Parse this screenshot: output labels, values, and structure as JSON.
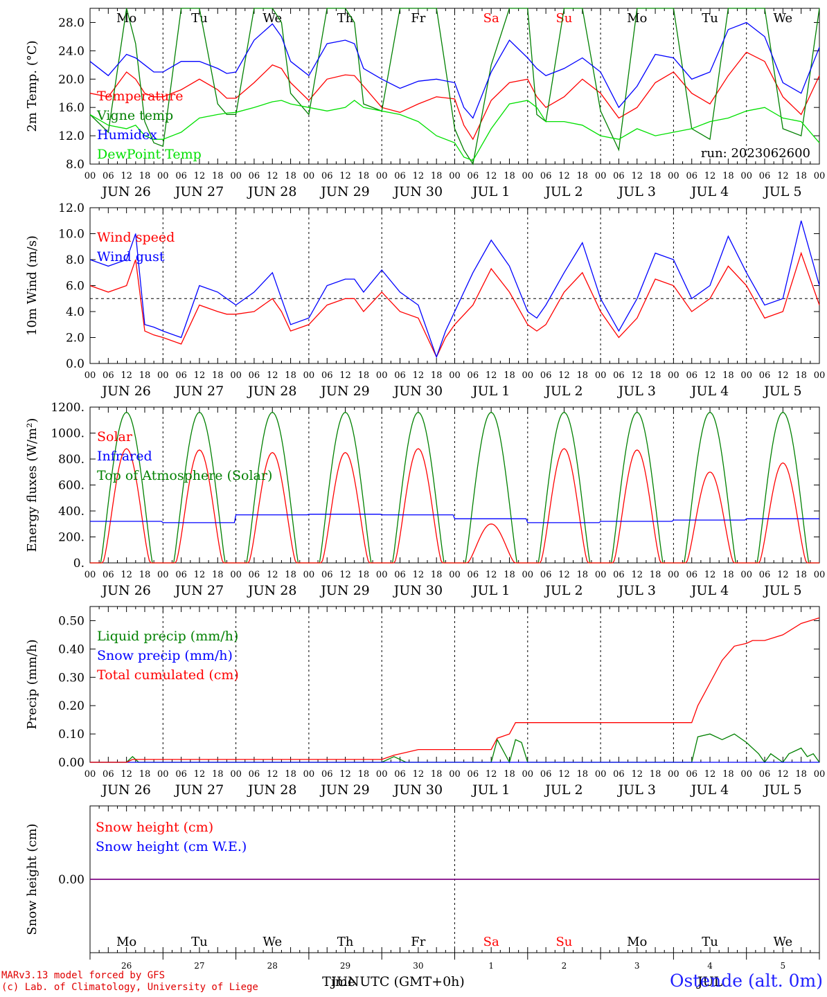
{
  "run_label": "run: 2023062600",
  "footer": {
    "model": "MARv3.13 model forced by GFS",
    "lab": "(c) Lab. of Climatology, University of Liege",
    "station": "Ostende (alt. 0m)",
    "month_label": "JUN",
    "month_label2": "JUL",
    "time_label": "Time UTC (GMT+0h)"
  },
  "days": [
    {
      "abbr": "Mo",
      "date": "JUN 26",
      "num": "26",
      "weekend": false
    },
    {
      "abbr": "Tu",
      "date": "JUN 27",
      "num": "27",
      "weekend": false
    },
    {
      "abbr": "We",
      "date": "JUN 28",
      "num": "28",
      "weekend": false
    },
    {
      "abbr": "Th",
      "date": "JUN 29",
      "num": "29",
      "weekend": false
    },
    {
      "abbr": "Fr",
      "date": "JUN 30",
      "num": "30",
      "weekend": false
    },
    {
      "abbr": "Sa",
      "date": "JUL  1",
      "num": "1",
      "weekend": true
    },
    {
      "abbr": "Su",
      "date": "JUL  2",
      "num": "2",
      "weekend": true
    },
    {
      "abbr": "Mo",
      "date": "JUL  3",
      "num": "3",
      "weekend": false
    },
    {
      "abbr": "Tu",
      "date": "JUL  4",
      "num": "4",
      "weekend": false
    },
    {
      "abbr": "We",
      "date": "JUL  5",
      "num": "5",
      "weekend": false
    }
  ],
  "hour_ticks": [
    "00",
    "06",
    "12",
    "18"
  ],
  "colors": {
    "red": "#ff0000",
    "blue": "#0000ff",
    "green": "#008000",
    "lightgreen": "#00e000",
    "purple": "#800080",
    "weekend": "#ff0000"
  },
  "chart_data": [
    {
      "type": "line",
      "id": "temp",
      "ylabel": "2m Temp. (°C)",
      "ylim": [
        8,
        30
      ],
      "yticks": [
        "8.0",
        "12.0",
        "16.0",
        "20.0",
        "24.0",
        "28.0"
      ],
      "ytick_values": [
        8,
        12,
        16,
        20,
        24,
        28
      ],
      "x_unit": "hours since JUN 26 00 UTC",
      "series": [
        {
          "name": "Temperature",
          "color": "red",
          "x": [
            0,
            6,
            12,
            15,
            18,
            21,
            24,
            30,
            36,
            42,
            45,
            48,
            54,
            60,
            63,
            66,
            72,
            78,
            84,
            87,
            90,
            96,
            102,
            108,
            114,
            120,
            123,
            126,
            132,
            138,
            144,
            147,
            150,
            156,
            162,
            168,
            174,
            180,
            186,
            192,
            198,
            204,
            210,
            216,
            222,
            228,
            234,
            240
          ],
          "y": [
            18.0,
            17.5,
            21.0,
            20.0,
            18.0,
            17.5,
            17.5,
            18.5,
            20.0,
            18.5,
            17.3,
            17.3,
            19.5,
            22.0,
            21.5,
            19.5,
            17.0,
            20.0,
            20.6,
            20.5,
            19.0,
            16.0,
            15.3,
            16.5,
            17.5,
            17.2,
            13.5,
            11.5,
            17.0,
            19.5,
            20.0,
            17.5,
            16.0,
            17.5,
            20.0,
            18.0,
            14.5,
            16.0,
            19.5,
            21.0,
            18.0,
            16.5,
            20.5,
            23.8,
            22.5,
            17.5,
            15.0,
            20.5
          ]
        },
        {
          "name": "Vigne temp",
          "color": "green",
          "x": [
            0,
            6,
            12,
            15,
            18,
            21,
            24,
            30,
            36,
            42,
            45,
            48,
            54,
            60,
            63,
            66,
            72,
            78,
            84,
            87,
            90,
            96,
            102,
            108,
            114,
            120,
            123,
            126,
            132,
            138,
            144,
            147,
            150,
            156,
            162,
            168,
            174,
            180,
            186,
            192,
            198,
            204,
            210,
            216,
            222,
            228,
            234,
            240
          ],
          "y": [
            15.0,
            12.5,
            30.0,
            25.0,
            14.0,
            11.0,
            10.5,
            30.0,
            30.0,
            16.5,
            15.0,
            15.0,
            30.0,
            30.0,
            28.0,
            18.0,
            15.0,
            30.0,
            30.0,
            28.0,
            16.5,
            15.5,
            30.0,
            30.0,
            30.0,
            13.0,
            10.0,
            8.0,
            22.0,
            30.0,
            30.0,
            15.0,
            14.0,
            30.0,
            30.0,
            15.5,
            10.0,
            30.0,
            30.0,
            30.0,
            13.0,
            11.5,
            30.0,
            30.0,
            30.0,
            13.0,
            12.0,
            30.0
          ]
        },
        {
          "name": "Humidex",
          "color": "blue",
          "x": [
            0,
            6,
            12,
            15,
            18,
            21,
            24,
            30,
            36,
            42,
            45,
            48,
            54,
            60,
            63,
            66,
            72,
            78,
            84,
            87,
            90,
            96,
            102,
            108,
            114,
            120,
            123,
            126,
            132,
            138,
            144,
            147,
            150,
            156,
            162,
            168,
            174,
            180,
            186,
            192,
            198,
            204,
            210,
            216,
            222,
            228,
            234,
            240
          ],
          "y": [
            22.5,
            20.5,
            23.5,
            23.0,
            22.0,
            21.0,
            21.0,
            22.5,
            22.5,
            21.5,
            20.8,
            21.0,
            25.5,
            27.8,
            26.0,
            22.5,
            20.5,
            25.0,
            25.5,
            25.0,
            21.5,
            20.0,
            18.7,
            19.7,
            20.0,
            19.5,
            16.0,
            14.5,
            21.0,
            25.5,
            23.0,
            21.5,
            20.5,
            21.5,
            23.0,
            21.0,
            16.0,
            19.0,
            23.5,
            23.0,
            20.0,
            21.0,
            27.0,
            28.0,
            26.0,
            19.5,
            18.0,
            24.5
          ]
        },
        {
          "name": "DewPoint Temp",
          "color": "lightgreen",
          "x": [
            0,
            6,
            12,
            15,
            18,
            21,
            24,
            30,
            36,
            42,
            45,
            48,
            54,
            60,
            63,
            66,
            72,
            78,
            84,
            87,
            90,
            96,
            102,
            108,
            114,
            120,
            123,
            126,
            132,
            138,
            144,
            147,
            150,
            156,
            162,
            168,
            174,
            180,
            186,
            192,
            198,
            204,
            210,
            216,
            222,
            228,
            234,
            240
          ],
          "y": [
            15.0,
            13.5,
            13.0,
            13.5,
            12.0,
            11.5,
            11.5,
            12.5,
            14.5,
            15.0,
            15.2,
            15.3,
            16.0,
            16.8,
            17.0,
            16.5,
            16.0,
            15.5,
            16.0,
            17.0,
            16.0,
            15.5,
            15.0,
            14.0,
            12.0,
            11.0,
            9.0,
            8.5,
            13.0,
            16.5,
            17.0,
            16.0,
            14.0,
            14.0,
            13.5,
            12.0,
            11.5,
            13.0,
            12.0,
            12.5,
            13.0,
            14.0,
            14.5,
            15.5,
            16.0,
            14.5,
            14.0,
            11.0
          ]
        }
      ]
    },
    {
      "type": "line",
      "id": "wind",
      "ylabel": "10m Wind (m/s)",
      "ylim": [
        0,
        12
      ],
      "yticks": [
        "0.0",
        "2.0",
        "4.0",
        "6.0",
        "8.0",
        "10.0",
        "12.0"
      ],
      "ytick_values": [
        0,
        2,
        4,
        6,
        8,
        10,
        12
      ],
      "reference_line": 5,
      "x_unit": "hours since JUN 26 00 UTC",
      "series": [
        {
          "name": "Wind speed",
          "color": "red",
          "x": [
            0,
            6,
            12,
            15,
            18,
            21,
            24,
            30,
            36,
            42,
            45,
            48,
            54,
            60,
            63,
            66,
            72,
            78,
            84,
            87,
            90,
            96,
            102,
            108,
            114,
            117,
            120,
            126,
            132,
            138,
            144,
            147,
            150,
            156,
            162,
            168,
            174,
            180,
            186,
            192,
            198,
            204,
            210,
            216,
            222,
            228,
            234,
            240
          ],
          "y": [
            6.0,
            5.5,
            6.0,
            8.0,
            2.5,
            2.2,
            2.0,
            1.5,
            4.5,
            4.0,
            3.8,
            3.8,
            4.0,
            5.0,
            4.0,
            2.5,
            3.0,
            4.5,
            5.0,
            5.0,
            4.0,
            5.5,
            4.0,
            3.5,
            0.5,
            2.0,
            3.0,
            4.5,
            7.3,
            5.5,
            3.0,
            2.5,
            3.0,
            5.5,
            7.0,
            4.0,
            2.0,
            3.5,
            6.5,
            6.0,
            4.0,
            5.0,
            7.5,
            6.0,
            3.5,
            4.0,
            8.5,
            4.5
          ]
        },
        {
          "name": "Wind gust",
          "color": "blue",
          "x": [
            0,
            6,
            12,
            15,
            18,
            21,
            24,
            30,
            36,
            42,
            45,
            48,
            54,
            60,
            63,
            66,
            72,
            78,
            84,
            87,
            90,
            96,
            102,
            108,
            114,
            117,
            120,
            126,
            132,
            138,
            144,
            147,
            150,
            156,
            162,
            168,
            174,
            180,
            186,
            192,
            198,
            204,
            210,
            216,
            222,
            228,
            234,
            240
          ],
          "y": [
            8.0,
            7.5,
            8.0,
            10.0,
            3.0,
            2.8,
            2.5,
            2.0,
            6.0,
            5.5,
            5.0,
            4.5,
            5.5,
            7.0,
            5.0,
            3.0,
            3.5,
            6.0,
            6.5,
            6.5,
            5.5,
            7.2,
            5.5,
            4.5,
            0.5,
            2.5,
            4.0,
            7.0,
            9.5,
            7.5,
            4.0,
            3.5,
            4.5,
            7.0,
            9.3,
            5.0,
            2.5,
            5.0,
            8.5,
            8.0,
            5.0,
            6.0,
            9.8,
            7.0,
            4.5,
            5.0,
            11.0,
            6.0
          ]
        }
      ]
    },
    {
      "type": "line",
      "id": "energy",
      "ylabel": "Energy fluxes (W/m²)",
      "ylim": [
        0,
        1200
      ],
      "yticks": [
        "0.",
        "200.",
        "400.",
        "600.",
        "800.",
        "1000.",
        "1200."
      ],
      "ytick_values": [
        0,
        200,
        400,
        600,
        800,
        1000,
        1200
      ],
      "x_unit": "hours since JUN 26 00 UTC",
      "diurnal": {
        "toa_peak": 1160,
        "solar_peaks": [
          880,
          870,
          850,
          850,
          880,
          300,
          880,
          870,
          700,
          770
        ],
        "infrared_level": [
          320,
          310,
          370,
          375,
          370,
          340,
          310,
          320,
          330,
          340
        ]
      },
      "series": [
        {
          "name": "Solar",
          "color": "red"
        },
        {
          "name": "Infrared",
          "color": "blue"
        },
        {
          "name": "Top of Atmosphere (Solar)",
          "color": "green"
        }
      ]
    },
    {
      "type": "line",
      "id": "precip",
      "ylabel": "Precip (mm/h)",
      "ylim": [
        0,
        0.55
      ],
      "yticks": [
        "0.00",
        "0.10",
        "0.20",
        "0.30",
        "0.40",
        "0.50"
      ],
      "ytick_values": [
        0,
        0.1,
        0.2,
        0.3,
        0.4,
        0.5
      ],
      "x_unit": "hours since JUN 26 00 UTC",
      "series": [
        {
          "name": "Liquid precip (mm/h)",
          "color": "green",
          "x": [
            0,
            12,
            14,
            16,
            18,
            96,
            100,
            104,
            108,
            132,
            134,
            136,
            138,
            140,
            142,
            144,
            150,
            198,
            200,
            204,
            208,
            212,
            216,
            220,
            222,
            224,
            228,
            230,
            234,
            236,
            238,
            240
          ],
          "y": [
            0,
            0,
            0.02,
            0,
            0,
            0,
            0.02,
            0,
            0,
            0,
            0.08,
            0.04,
            0,
            0.08,
            0.07,
            0,
            0,
            0,
            0.09,
            0.1,
            0.08,
            0.1,
            0.07,
            0.03,
            0,
            0.03,
            0,
            0.03,
            0.05,
            0.02,
            0.03,
            0
          ]
        },
        {
          "name": "Snow precip (mm/h)",
          "color": "blue",
          "x": [
            0,
            240
          ],
          "y": [
            0,
            0
          ]
        },
        {
          "name": "Total cumulated (cm)",
          "color": "red",
          "x": [
            0,
            12,
            14,
            96,
            100,
            104,
            108,
            132,
            134,
            138,
            140,
            142,
            150,
            198,
            200,
            204,
            208,
            212,
            216,
            218,
            222,
            228,
            234,
            240
          ],
          "y": [
            0,
            0,
            0.01,
            0.01,
            0.025,
            0.035,
            0.045,
            0.045,
            0.085,
            0.1,
            0.14,
            0.14,
            0.14,
            0.14,
            0.2,
            0.28,
            0.36,
            0.41,
            0.42,
            0.43,
            0.43,
            0.45,
            0.49,
            0.51
          ]
        }
      ]
    },
    {
      "type": "line",
      "id": "snow",
      "ylabel": "Snow height (cm)",
      "ylim": [
        -1,
        1
      ],
      "yticks": [
        "0.00"
      ],
      "ytick_values": [
        0
      ],
      "x_unit": "hours since JUN 26 00 UTC",
      "series": [
        {
          "name": "Snow height (cm)",
          "color": "red",
          "x": [
            0,
            240
          ],
          "y": [
            0,
            0
          ]
        },
        {
          "name": "Snow height (cm W.E.)",
          "color": "blue",
          "x": [
            0,
            240
          ],
          "y": [
            0,
            0
          ]
        }
      ]
    }
  ]
}
